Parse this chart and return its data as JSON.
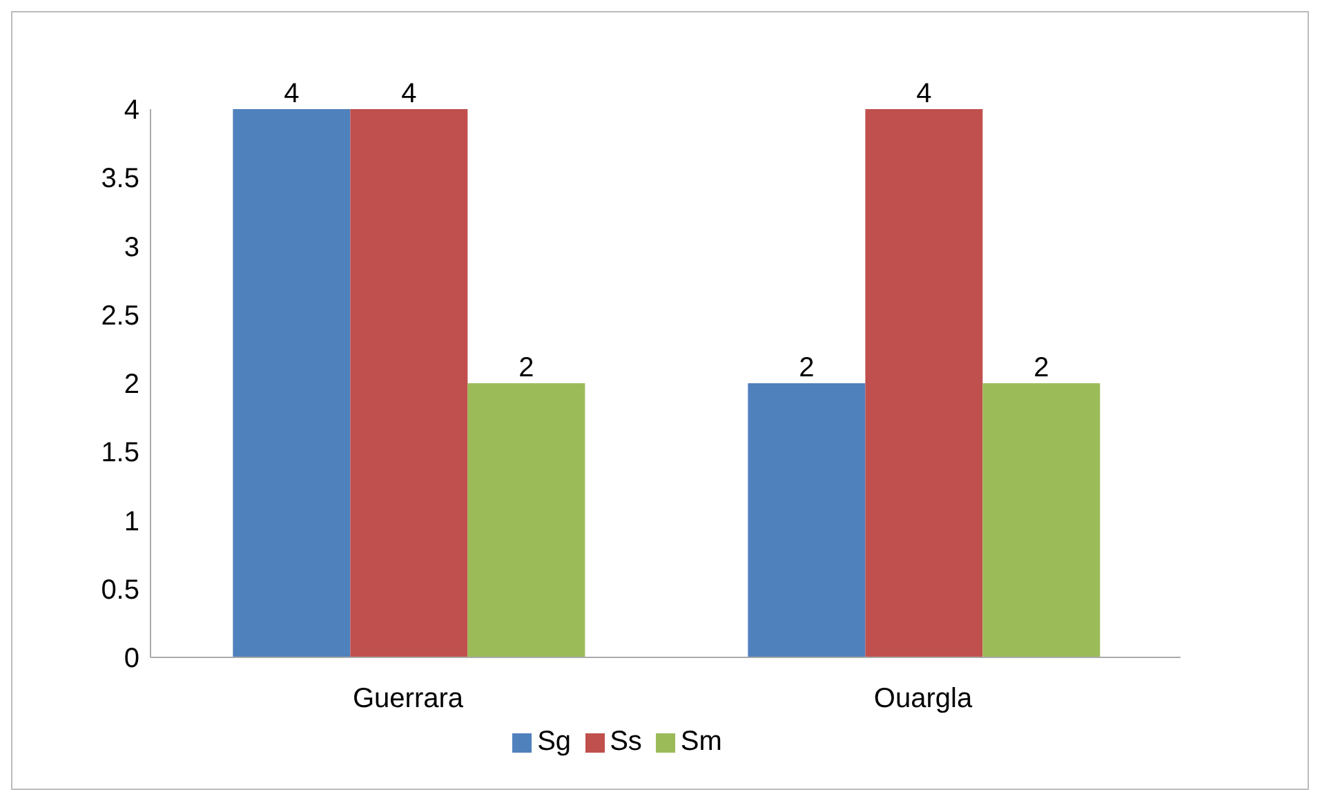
{
  "chart_data": {
    "type": "bar",
    "categories": [
      "Guerrara",
      "Ouargla"
    ],
    "series": [
      {
        "name": "Sg",
        "color": "#4f81bd",
        "values": [
          4,
          2
        ]
      },
      {
        "name": "Ss",
        "color": "#c0504d",
        "values": [
          4,
          4
        ]
      },
      {
        "name": "Sm",
        "color": "#9bbb59",
        "values": [
          2,
          2
        ]
      }
    ],
    "ylim": [
      0,
      4
    ],
    "yticks": [
      0,
      0.5,
      1,
      1.5,
      2,
      2.5,
      3,
      3.5,
      4
    ],
    "grid": false,
    "legend": "bottom",
    "data_labels": true
  }
}
